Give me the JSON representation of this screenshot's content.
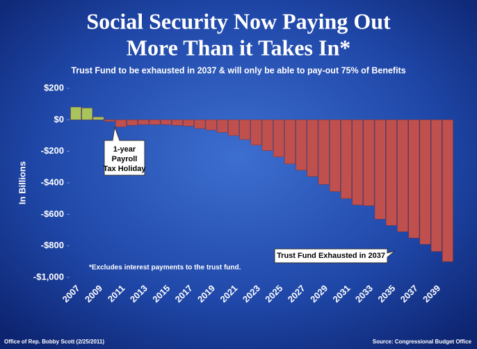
{
  "chart_data": {
    "type": "bar",
    "title": [
      "Social Security Now Paying Out",
      "More Than it Takes In*"
    ],
    "subtitle": "Trust Fund to be exhausted in 2037 & will only be able to pay-out 75% of Benefits",
    "y_label": "In Billions",
    "categories": [
      "2007",
      null,
      "2009",
      null,
      "2011",
      null,
      "2013",
      null,
      "2015",
      null,
      "2017",
      null,
      "2019",
      null,
      "2021",
      null,
      "2023",
      null,
      "2025",
      null,
      "2027",
      null,
      "2029",
      null,
      "2031",
      null,
      "2033",
      null,
      "2035",
      null,
      "2037",
      null,
      "2039",
      null
    ],
    "values": [
      81,
      75,
      18,
      -10,
      -45,
      -35,
      -30,
      -30,
      -30,
      -35,
      -40,
      -55,
      -65,
      -80,
      -100,
      -125,
      -160,
      -195,
      -235,
      -280,
      -320,
      -360,
      -410,
      -455,
      -500,
      -540,
      -545,
      -630,
      -670,
      -710,
      -750,
      -790,
      -835,
      -900
    ],
    "positive_color": "#a9c45a",
    "negative_color": "#c0504d",
    "ylim": [
      -1000,
      200
    ],
    "yticks": [
      {
        "value": 200,
        "label": "$200"
      },
      {
        "value": 0,
        "label": "$0"
      },
      {
        "value": -200,
        "label": "-$200"
      },
      {
        "value": -400,
        "label": "-$400"
      },
      {
        "value": -600,
        "label": "-$600"
      },
      {
        "value": -800,
        "label": "-$800"
      },
      {
        "value": -1000,
        "label": "-$1,000"
      }
    ],
    "annotations": {
      "tax_holiday": [
        "1-year",
        "Payroll",
        "Tax Holiday"
      ],
      "exhausted": "Trust Fund Exhausted in 2037",
      "footnote": "*Excludes interest payments to the trust fund."
    },
    "footer_left": "Office of Rep. Bobby Scott (2/25/2011)",
    "source": "Source:  Congressional Budget Office"
  }
}
